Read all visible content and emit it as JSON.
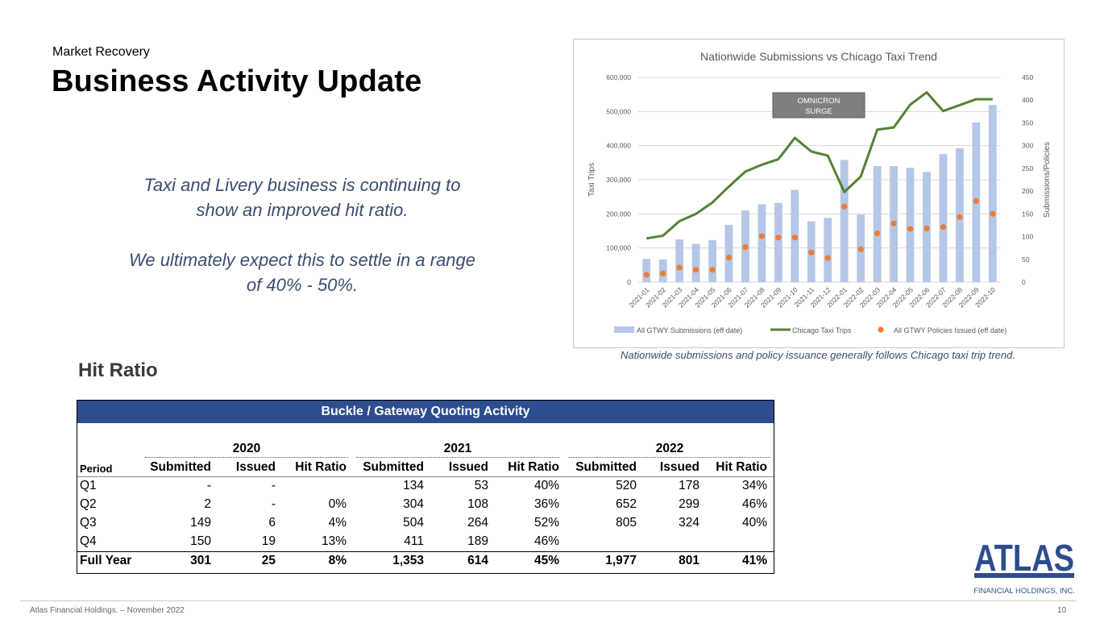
{
  "header": {
    "subtitle": "Market Recovery",
    "title": "Business Activity Update"
  },
  "blurb": {
    "line1": "Taxi and Livery business is continuing to show an improved hit ratio.",
    "line2": "We ultimately expect this to settle in a range of 40% - 50%."
  },
  "hit_ratio_title": "Hit Ratio",
  "chart_caption": "Nationwide submissions and policy issuance generally follows Chicago taxi trip trend.",
  "chart_data": {
    "type": "bar",
    "title": "Nationwide Submissions  vs Chicago Taxi Trend",
    "ylabel": "Taxi Trips",
    "y2label": "Submissions/Policies",
    "ylim": [
      0,
      600000
    ],
    "y2lim": [
      0,
      450
    ],
    "y_ticks": [
      "0",
      "100,000",
      "200,000",
      "300,000",
      "400,000",
      "500,000",
      "600,000"
    ],
    "y2_ticks": [
      "0",
      "50",
      "100",
      "150",
      "200",
      "250",
      "300",
      "350",
      "400",
      "450"
    ],
    "categories": [
      "2021-01",
      "2021-02",
      "2021-03",
      "2021-04",
      "2021-05",
      "2021-06",
      "2021-07",
      "2021-08",
      "2021-09",
      "2021-10",
      "2021-11",
      "2021-12",
      "2022-01",
      "2022-02",
      "2022-03",
      "2022-04",
      "2022-05",
      "2022-06",
      "2022-07",
      "2022-08",
      "2022-09",
      "2022-10"
    ],
    "series": [
      {
        "name": "All GTWY Submissions (eff date)",
        "kind": "bar",
        "color": "#b4c7e7",
        "values": [
          68000,
          66000,
          125000,
          112000,
          123000,
          168000,
          210000,
          228000,
          232000,
          270000,
          178000,
          188000,
          358000,
          198000,
          340000,
          340000,
          335000,
          323000,
          375000,
          392000,
          468000,
          519000
        ]
      },
      {
        "name": "Chicago Taxi Trips",
        "kind": "line",
        "color": "#548235",
        "values": [
          96,
          102,
          134,
          150,
          175,
          210,
          243,
          258,
          270,
          317,
          287,
          278,
          198,
          232,
          335,
          340,
          390,
          417,
          376,
          389,
          402,
          402
        ]
      },
      {
        "name": "All GTWY Policies Issued (eff date)",
        "kind": "scatter",
        "color": "#ed7d31",
        "values": [
          16,
          19,
          32,
          27,
          27,
          54,
          77,
          101,
          98,
          98,
          65,
          53,
          166,
          72,
          107,
          129,
          117,
          118,
          121,
          143,
          178,
          150
        ]
      }
    ],
    "annotation": "OMNICRON SURGE",
    "legend_position": "bottom"
  },
  "table": {
    "title": "Buckle / Gateway Quoting Activity",
    "years": [
      "2020",
      "2021",
      "2022"
    ],
    "period_label": "Period",
    "col_headers": [
      "Submitted",
      "Issued",
      "Hit Ratio",
      "Submitted",
      "Issued",
      "Hit Ratio",
      "Submitted",
      "Issued",
      "Hit Ratio"
    ],
    "rows": [
      {
        "period": "Q1",
        "cells": [
          "-",
          "-",
          "",
          "134",
          "53",
          "40%",
          "520",
          "178",
          "34%"
        ]
      },
      {
        "period": "Q2",
        "cells": [
          "2",
          "-",
          "0%",
          "304",
          "108",
          "36%",
          "652",
          "299",
          "46%"
        ]
      },
      {
        "period": "Q3",
        "cells": [
          "149",
          "6",
          "4%",
          "504",
          "264",
          "52%",
          "805",
          "324",
          "40%"
        ]
      },
      {
        "period": "Q4",
        "cells": [
          "150",
          "19",
          "13%",
          "411",
          "189",
          "46%",
          "",
          "",
          ""
        ]
      }
    ],
    "full_year": {
      "period": "Full Year",
      "cells": [
        "301",
        "25",
        "8%",
        "1,353",
        "614",
        "45%",
        "1,977",
        "801",
        "41%"
      ]
    }
  },
  "logo": {
    "name": "ATLAS",
    "tagline": "FINANCIAL HOLDINGS, INC.",
    "color": "#2e4d8f"
  },
  "footer": {
    "text": "Atlas Financial Holdings. – November 2022",
    "page": "10"
  }
}
